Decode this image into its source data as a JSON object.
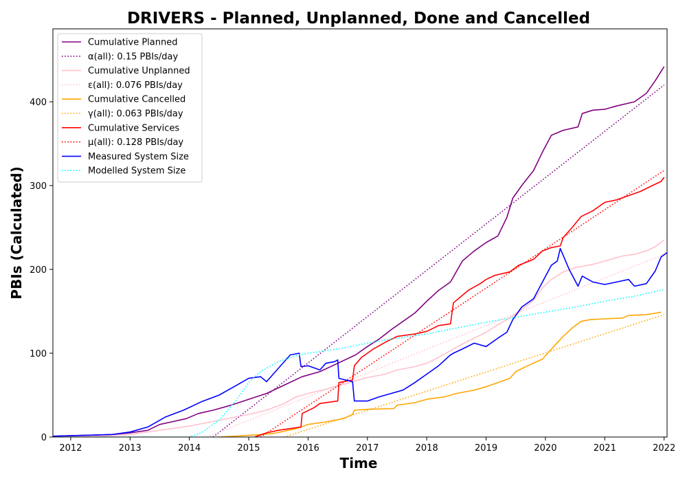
{
  "chart_data": {
    "type": "line",
    "title": "DRIVERS - Planned, Unplanned, Done  and Cancelled",
    "xlabel": "Time",
    "ylabel": "PBIs (Calculated)",
    "xlim": [
      2011.7,
      2022.05
    ],
    "ylim": [
      0,
      487
    ],
    "x_ticks": [
      2012,
      2013,
      2014,
      2015,
      2016,
      2017,
      2018,
      2019,
      2020,
      2021,
      2022
    ],
    "y_ticks": [
      0,
      100,
      200,
      300,
      400
    ],
    "grid": false,
    "legend_position": "top-left",
    "series": [
      {
        "name": "Cumulative Planned",
        "color": "#800080",
        "style": "solid",
        "points": [
          [
            2011.7,
            1
          ],
          [
            2012.2,
            2
          ],
          [
            2012.7,
            3
          ],
          [
            2013.0,
            5
          ],
          [
            2013.3,
            8
          ],
          [
            2013.5,
            15
          ],
          [
            2013.7,
            18
          ],
          [
            2013.95,
            22
          ],
          [
            2014.15,
            28
          ],
          [
            2014.4,
            32
          ],
          [
            2014.7,
            38
          ],
          [
            2015.0,
            45
          ],
          [
            2015.3,
            52
          ],
          [
            2015.6,
            62
          ],
          [
            2015.9,
            72
          ],
          [
            2016.2,
            78
          ],
          [
            2016.5,
            88
          ],
          [
            2016.8,
            98
          ],
          [
            2017.0,
            108
          ],
          [
            2017.2,
            117
          ],
          [
            2017.4,
            128
          ],
          [
            2017.6,
            138
          ],
          [
            2017.8,
            148
          ],
          [
            2018.0,
            162
          ],
          [
            2018.2,
            175
          ],
          [
            2018.4,
            185
          ],
          [
            2018.6,
            210
          ],
          [
            2018.8,
            222
          ],
          [
            2019.0,
            232
          ],
          [
            2019.2,
            240
          ],
          [
            2019.35,
            262
          ],
          [
            2019.45,
            285
          ],
          [
            2019.6,
            300
          ],
          [
            2019.8,
            318
          ],
          [
            2019.95,
            340
          ],
          [
            2020.1,
            360
          ],
          [
            2020.3,
            366
          ],
          [
            2020.55,
            370
          ],
          [
            2020.62,
            386
          ],
          [
            2020.8,
            390
          ],
          [
            2021.0,
            391
          ],
          [
            2021.2,
            395
          ],
          [
            2021.5,
            400
          ],
          [
            2021.7,
            410
          ],
          [
            2021.85,
            425
          ],
          [
            2022.0,
            442
          ]
        ]
      },
      {
        "name": "α(all): 0.15 PBIs/day",
        "color": "#800080",
        "style": "dotted",
        "points": [
          [
            2014.4,
            0
          ],
          [
            2022.0,
            420
          ]
        ]
      },
      {
        "name": "Cumulative Unplanned",
        "color": "#ffc0cb",
        "style": "solid",
        "points": [
          [
            2011.7,
            0
          ],
          [
            2012.5,
            1
          ],
          [
            2013.0,
            3
          ],
          [
            2013.5,
            8
          ],
          [
            2014.0,
            13
          ],
          [
            2014.5,
            20
          ],
          [
            2015.0,
            27
          ],
          [
            2015.3,
            32
          ],
          [
            2015.6,
            40
          ],
          [
            2015.8,
            48
          ],
          [
            2016.0,
            52
          ],
          [
            2016.3,
            57
          ],
          [
            2016.6,
            63
          ],
          [
            2016.8,
            67
          ],
          [
            2017.0,
            71
          ],
          [
            2017.3,
            75
          ],
          [
            2017.5,
            80
          ],
          [
            2017.8,
            84
          ],
          [
            2018.0,
            88
          ],
          [
            2018.2,
            95
          ],
          [
            2018.4,
            103
          ],
          [
            2018.6,
            111
          ],
          [
            2018.8,
            118
          ],
          [
            2019.0,
            125
          ],
          [
            2019.2,
            134
          ],
          [
            2019.4,
            142
          ],
          [
            2019.6,
            152
          ],
          [
            2019.8,
            163
          ],
          [
            2019.95,
            178
          ],
          [
            2020.1,
            188
          ],
          [
            2020.3,
            197
          ],
          [
            2020.5,
            202
          ],
          [
            2020.8,
            206
          ],
          [
            2021.0,
            210
          ],
          [
            2021.3,
            216
          ],
          [
            2021.5,
            218
          ],
          [
            2021.7,
            222
          ],
          [
            2021.85,
            227
          ],
          [
            2022.0,
            235
          ]
        ]
      },
      {
        "name": "ε(all): 0.076 PBIs/day",
        "color": "#ffc0cb",
        "style": "dotted",
        "points": [
          [
            2014.3,
            0
          ],
          [
            2022.0,
            218
          ]
        ]
      },
      {
        "name": "Cumulative Cancelled",
        "color": "#ffa500",
        "style": "solid",
        "points": [
          [
            2014.5,
            0
          ],
          [
            2015.0,
            2
          ],
          [
            2015.4,
            4
          ],
          [
            2015.8,
            10
          ],
          [
            2016.0,
            15
          ],
          [
            2016.3,
            18
          ],
          [
            2016.6,
            22
          ],
          [
            2016.75,
            27
          ],
          [
            2016.78,
            32
          ],
          [
            2017.0,
            33
          ],
          [
            2017.45,
            34
          ],
          [
            2017.5,
            38
          ],
          [
            2017.8,
            41
          ],
          [
            2018.0,
            45
          ],
          [
            2018.3,
            48
          ],
          [
            2018.5,
            52
          ],
          [
            2018.8,
            56
          ],
          [
            2019.0,
            60
          ],
          [
            2019.2,
            65
          ],
          [
            2019.4,
            70
          ],
          [
            2019.5,
            78
          ],
          [
            2019.7,
            85
          ],
          [
            2019.95,
            93
          ],
          [
            2020.1,
            105
          ],
          [
            2020.3,
            120
          ],
          [
            2020.45,
            130
          ],
          [
            2020.6,
            138
          ],
          [
            2020.75,
            140
          ],
          [
            2021.0,
            141
          ],
          [
            2021.3,
            142
          ],
          [
            2021.4,
            145
          ],
          [
            2021.7,
            146
          ],
          [
            2021.8,
            147
          ],
          [
            2021.95,
            149
          ]
        ]
      },
      {
        "name": "γ(all): 0.063 PBIs/day",
        "color": "#ffa500",
        "style": "dotted",
        "points": [
          [
            2015.6,
            0
          ],
          [
            2022.0,
            146
          ]
        ]
      },
      {
        "name": "Cumulative Services",
        "color": "#ff0000",
        "style": "solid",
        "points": [
          [
            2015.1,
            0
          ],
          [
            2015.3,
            5
          ],
          [
            2015.5,
            8
          ],
          [
            2015.88,
            12
          ],
          [
            2015.9,
            28
          ],
          [
            2016.1,
            35
          ],
          [
            2016.2,
            40
          ],
          [
            2016.5,
            43
          ],
          [
            2016.52,
            65
          ],
          [
            2016.75,
            68
          ],
          [
            2016.78,
            85
          ],
          [
            2016.9,
            95
          ],
          [
            2017.1,
            105
          ],
          [
            2017.3,
            113
          ],
          [
            2017.5,
            120
          ],
          [
            2017.8,
            123
          ],
          [
            2018.0,
            126
          ],
          [
            2018.2,
            133
          ],
          [
            2018.4,
            135
          ],
          [
            2018.45,
            160
          ],
          [
            2018.7,
            175
          ],
          [
            2018.9,
            183
          ],
          [
            2019.0,
            188
          ],
          [
            2019.15,
            193
          ],
          [
            2019.4,
            197
          ],
          [
            2019.55,
            205
          ],
          [
            2019.8,
            212
          ],
          [
            2019.95,
            222
          ],
          [
            2020.1,
            226
          ],
          [
            2020.25,
            228
          ],
          [
            2020.3,
            238
          ],
          [
            2020.45,
            250
          ],
          [
            2020.6,
            263
          ],
          [
            2020.8,
            270
          ],
          [
            2021.0,
            280
          ],
          [
            2021.2,
            283
          ],
          [
            2021.4,
            288
          ],
          [
            2021.6,
            293
          ],
          [
            2021.8,
            300
          ],
          [
            2021.95,
            305
          ],
          [
            2022.0,
            310
          ]
        ]
      },
      {
        "name": "μ(all): 0.128 PBIs/day",
        "color": "#ff0000",
        "style": "dotted",
        "points": [
          [
            2015.2,
            0
          ],
          [
            2022.0,
            318
          ]
        ]
      },
      {
        "name": "Measured System Size",
        "color": "#0000ff",
        "style": "solid",
        "points": [
          [
            2011.7,
            1
          ],
          [
            2012.2,
            2
          ],
          [
            2012.7,
            3
          ],
          [
            2013.0,
            6
          ],
          [
            2013.3,
            12
          ],
          [
            2013.6,
            24
          ],
          [
            2013.9,
            32
          ],
          [
            2014.2,
            42
          ],
          [
            2014.5,
            50
          ],
          [
            2014.8,
            62
          ],
          [
            2015.0,
            70
          ],
          [
            2015.2,
            72
          ],
          [
            2015.3,
            66
          ],
          [
            2015.5,
            82
          ],
          [
            2015.7,
            98
          ],
          [
            2015.85,
            100
          ],
          [
            2015.88,
            84
          ],
          [
            2016.0,
            85
          ],
          [
            2016.2,
            80
          ],
          [
            2016.3,
            88
          ],
          [
            2016.45,
            90
          ],
          [
            2016.5,
            92
          ],
          [
            2016.52,
            70
          ],
          [
            2016.75,
            66
          ],
          [
            2016.78,
            43
          ],
          [
            2017.0,
            43
          ],
          [
            2017.2,
            48
          ],
          [
            2017.4,
            52
          ],
          [
            2017.6,
            56
          ],
          [
            2017.8,
            65
          ],
          [
            2018.0,
            75
          ],
          [
            2018.2,
            85
          ],
          [
            2018.4,
            98
          ],
          [
            2018.45,
            100
          ],
          [
            2018.6,
            105
          ],
          [
            2018.8,
            112
          ],
          [
            2019.0,
            108
          ],
          [
            2019.2,
            118
          ],
          [
            2019.35,
            125
          ],
          [
            2019.45,
            140
          ],
          [
            2019.6,
            155
          ],
          [
            2019.8,
            165
          ],
          [
            2019.95,
            185
          ],
          [
            2020.1,
            205
          ],
          [
            2020.2,
            210
          ],
          [
            2020.25,
            225
          ],
          [
            2020.4,
            200
          ],
          [
            2020.55,
            180
          ],
          [
            2020.62,
            192
          ],
          [
            2020.8,
            185
          ],
          [
            2021.0,
            182
          ],
          [
            2021.2,
            185
          ],
          [
            2021.4,
            188
          ],
          [
            2021.5,
            180
          ],
          [
            2021.7,
            183
          ],
          [
            2021.85,
            198
          ],
          [
            2021.95,
            215
          ],
          [
            2022.05,
            220
          ]
        ]
      },
      {
        "name": "Modelled System Size",
        "color": "#00ffff",
        "style": "dotted",
        "points": [
          [
            2011.7,
            0
          ],
          [
            2014.0,
            0
          ],
          [
            2014.2,
            5
          ],
          [
            2014.5,
            20
          ],
          [
            2014.8,
            45
          ],
          [
            2015.0,
            65
          ],
          [
            2015.2,
            78
          ],
          [
            2015.5,
            90
          ],
          [
            2015.8,
            97
          ],
          [
            2016.0,
            100
          ],
          [
            2016.5,
            105
          ],
          [
            2017.0,
            112
          ],
          [
            2017.5,
            118
          ],
          [
            2018.0,
            123
          ],
          [
            2018.5,
            130
          ],
          [
            2019.0,
            137
          ],
          [
            2019.5,
            143
          ],
          [
            2020.0,
            149
          ],
          [
            2020.5,
            155
          ],
          [
            2021.0,
            162
          ],
          [
            2021.5,
            168
          ],
          [
            2022.0,
            176
          ]
        ]
      }
    ]
  }
}
